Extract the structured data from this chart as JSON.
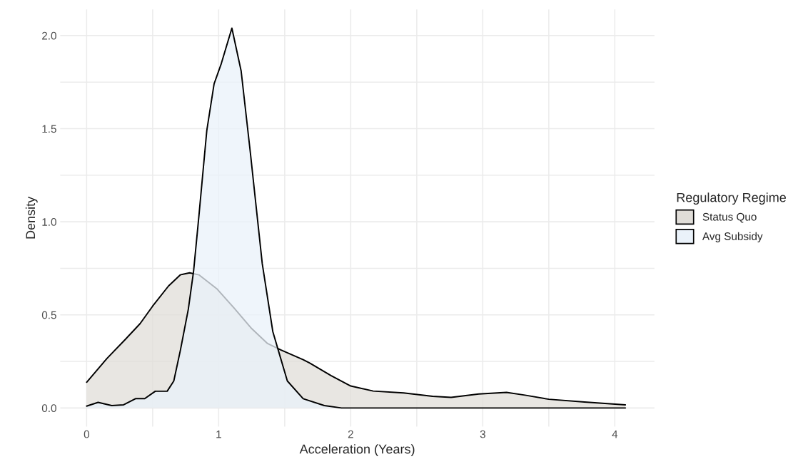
{
  "chart_data": {
    "type": "area",
    "xlabel": "Acceleration (Years)",
    "ylabel": "Density",
    "legend_title": "Regulatory Regime",
    "series": [
      {
        "name": "Status Quo",
        "color": "#e0ddd8",
        "x": [
          0,
          0.154,
          0.29,
          0.405,
          0.5,
          0.62,
          0.71,
          0.78,
          0.85,
          0.985,
          1.12,
          1.25,
          1.37,
          1.47,
          1.64,
          1.69,
          1.85,
          2.0,
          2.17,
          2.4,
          2.62,
          2.76,
          2.97,
          3.18,
          3.32,
          3.5,
          3.77,
          4.08
        ],
        "values": [
          0.138,
          0.266,
          0.366,
          0.453,
          0.547,
          0.655,
          0.715,
          0.726,
          0.715,
          0.641,
          0.534,
          0.426,
          0.346,
          0.312,
          0.259,
          0.241,
          0.174,
          0.118,
          0.091,
          0.081,
          0.063,
          0.057,
          0.075,
          0.084,
          0.069,
          0.047,
          0.032,
          0.017
        ]
      },
      {
        "name": "Avg Subsidy",
        "color": "#eaf2fa",
        "x": [
          0,
          0.087,
          0.19,
          0.28,
          0.37,
          0.44,
          0.52,
          0.61,
          0.66,
          0.71,
          0.77,
          0.81,
          0.85,
          0.91,
          0.965,
          1.02,
          1.1,
          1.17,
          1.24,
          1.33,
          1.41,
          1.47,
          1.52,
          1.64,
          1.8,
          1.93,
          2.5,
          3.0,
          3.5,
          4.08
        ],
        "values": [
          0.01,
          0.03,
          0.013,
          0.017,
          0.05,
          0.05,
          0.09,
          0.09,
          0.145,
          0.31,
          0.53,
          0.735,
          1.03,
          1.49,
          1.74,
          1.85,
          2.04,
          1.81,
          1.37,
          0.775,
          0.41,
          0.265,
          0.145,
          0.05,
          0.013,
          0,
          0,
          0,
          0,
          0
        ]
      }
    ],
    "xlim": [
      -0.2,
      4.3
    ],
    "ylim": [
      -0.1,
      2.14
    ],
    "xticks": [
      0,
      {
        "value": 0.5,
        "label": null
      },
      1,
      {
        "value": 1.5,
        "label": null
      },
      2,
      {
        "value": 2.5,
        "label": null
      },
      3,
      {
        "value": 3.5,
        "label": null
      },
      4
    ],
    "yticks": [
      "0.0",
      {
        "value": 0.25,
        "label": null
      },
      {
        "value": 0.5,
        "label": "0.5"
      },
      {
        "value": 0.75,
        "label": null
      },
      {
        "value": 1.0,
        "label": "1.0"
      },
      {
        "value": 1.25,
        "label": null
      },
      {
        "value": 1.5,
        "label": "1.5"
      },
      {
        "value": 1.75,
        "label": null
      },
      {
        "value": 2.0,
        "label": "2.0"
      }
    ],
    "grid": true,
    "legend": "right"
  }
}
